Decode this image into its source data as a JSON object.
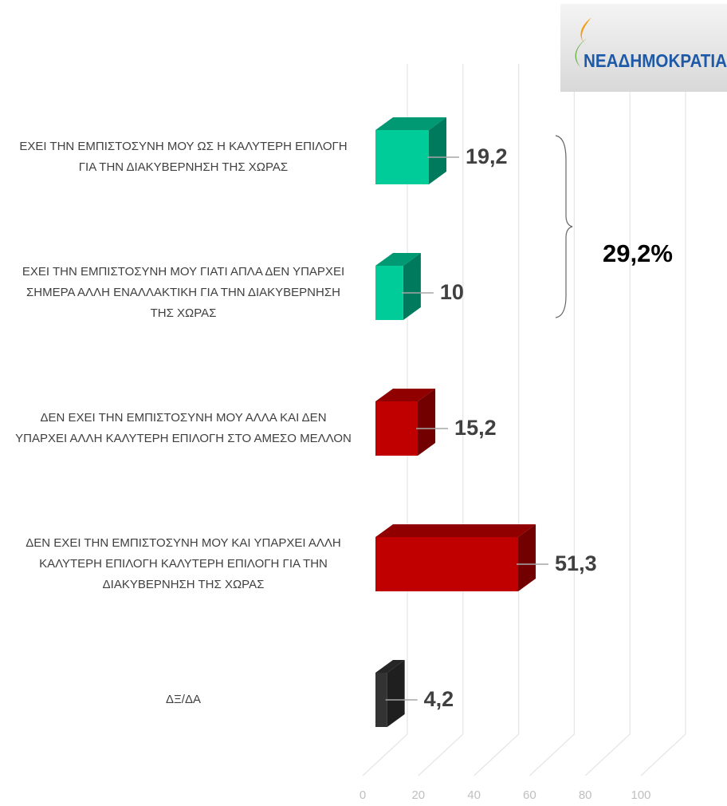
{
  "logo": "ΝΕΑΔΗΜΟΚΡΑΤΙΑ",
  "chart_data": {
    "type": "bar",
    "orientation": "horizontal",
    "categories": [
      "ΕΧΕΙ ΤΗΝ ΕΜΠΙΣΤΟΣΥΝΗ ΜΟΥ ΩΣ Η ΚΑΛΥΤΕΡΗ ΕΠΙΛΟΓΗ ΓΙΑ ΤΗΝ ΔΙΑΚΥΒΕΡΝΗΣΗ ΤΗΣ ΧΩΡΑΣ",
      "ΕΧΕΙ ΤΗΝ ΕΜΠΙΣΤΟΣΥΝΗ ΜΟΥ ΓΙΑΤΙ ΑΠΛΑ ΔΕΝ ΥΠΑΡΧΕΙ ΣΗΜΕΡΑ ΑΛΛΗ ΕΝΑΛΛΑΚΤΙΚΗ ΓΙΑ ΤΗΝ ΔΙΑΚΥΒΕΡΝΗΣΗ ΤΗΣ ΧΩΡΑΣ",
      "ΔΕΝ ΕΧΕΙ ΤΗΝ ΕΜΠΙΣΤΟΣΥΝΗ ΜΟΥ ΑΛΛΑ ΚΑΙ ΔΕΝ ΥΠΑΡΧΕΙ ΑΛΛΗ ΚΑΛΥΤΕΡΗ ΕΠΙΛΟΓΗ ΣΤΟ ΑΜΕΣΟ ΜΕΛΛΟΝ",
      "ΔΕΝ ΕΧΕΙ ΤΗΝ ΕΜΠΙΣΤΟΣΥΝΗ ΜΟΥ ΚΑΙ ΥΠΑΡΧΕΙ ΑΛΛΗ ΚΑΛΥΤΕΡΗ ΕΠΙΛΟΓΗ ΚΑΛΥΤΕΡΗ ΕΠΙΛΟΓΗ ΓΙΑ ΤΗΝ ΔΙΑΚΥΒΕΡΝΗΣΗ ΤΗΣ ΧΩΡΑΣ",
      "ΔΞ/ΔΑ"
    ],
    "values": [
      19.2,
      10,
      15.2,
      51.3,
      4.2
    ],
    "value_labels": [
      "19,2",
      "10",
      "15,2",
      "51,3",
      "4,2"
    ],
    "colors": [
      "#00cc99",
      "#00cc99",
      "#c00000",
      "#c00000",
      "#333333"
    ],
    "xlim": [
      0,
      100
    ],
    "xticks": [
      0,
      20,
      40,
      60,
      80,
      100
    ],
    "grid": true,
    "annotation": "29,2%"
  }
}
